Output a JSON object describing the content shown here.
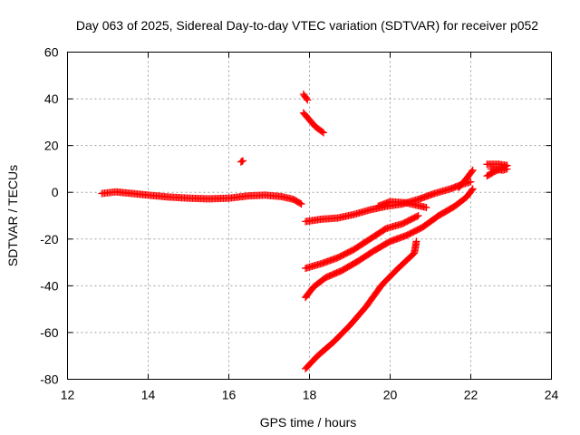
{
  "chart_data": {
    "type": "scatter",
    "title": "Day 063 of 2025, Sidereal Day-to-day VTEC variation (SDTVAR) for receiver p052",
    "xlabel": "GPS time / hours",
    "ylabel": "SDTVAR / TECUs",
    "xlim": [
      12,
      24
    ],
    "ylim": [
      -80,
      60
    ],
    "x_ticks": [
      "12",
      "14",
      "16",
      "18",
      "20",
      "22",
      "24"
    ],
    "y_ticks": [
      "-80",
      "-60",
      "-40",
      "-20",
      "0",
      "20",
      "40",
      "60"
    ],
    "grid": true,
    "legend": "none",
    "marker_color": "#ff0000",
    "series": [
      {
        "points": [
          [
            12.85,
            -0.5
          ],
          [
            13.2,
            0.2
          ],
          [
            13.6,
            -0.5
          ],
          [
            14.0,
            -1.2
          ],
          [
            14.5,
            -2.0
          ],
          [
            15.0,
            -2.5
          ],
          [
            15.5,
            -2.8
          ],
          [
            16.0,
            -2.5
          ],
          [
            16.5,
            -1.5
          ],
          [
            16.9,
            -1.2
          ],
          [
            17.3,
            -1.8
          ],
          [
            17.6,
            -3.0
          ],
          [
            17.8,
            -5.0
          ]
        ]
      },
      {
        "points": [
          [
            16.3,
            13.0
          ],
          [
            16.35,
            13.5
          ]
        ]
      },
      {
        "points": [
          [
            17.85,
            42.0
          ],
          [
            17.95,
            39.5
          ]
        ]
      },
      {
        "points": [
          [
            17.85,
            34.0
          ],
          [
            18.0,
            31.0
          ],
          [
            18.15,
            28.0
          ],
          [
            18.35,
            25.5
          ]
        ]
      },
      {
        "points": [
          [
            17.9,
            -12.5
          ],
          [
            18.3,
            -11.5
          ],
          [
            18.7,
            -11.0
          ],
          [
            19.1,
            -9.5
          ],
          [
            19.5,
            -7.5
          ],
          [
            19.9,
            -6.0
          ],
          [
            20.3,
            -5.0
          ],
          [
            20.7,
            -3.0
          ],
          [
            21.1,
            -0.5
          ],
          [
            21.5,
            1.5
          ],
          [
            21.8,
            3.5
          ],
          [
            22.0,
            4.5
          ]
        ]
      },
      {
        "points": [
          [
            19.7,
            -6.0
          ],
          [
            20.0,
            -4.0
          ],
          [
            20.4,
            -4.5
          ],
          [
            20.9,
            -6.5
          ]
        ]
      },
      {
        "points": [
          [
            17.9,
            -32.5
          ],
          [
            18.3,
            -30.5
          ],
          [
            18.7,
            -28.0
          ],
          [
            19.1,
            -24.5
          ],
          [
            19.5,
            -20.0
          ],
          [
            19.9,
            -15.5
          ],
          [
            20.3,
            -13.5
          ],
          [
            20.7,
            -10.0
          ]
        ]
      },
      {
        "points": [
          [
            17.9,
            -45.0
          ],
          [
            18.1,
            -40.5
          ],
          [
            18.4,
            -36.5
          ],
          [
            18.8,
            -33.5
          ],
          [
            19.2,
            -29.5
          ],
          [
            19.6,
            -25.0
          ],
          [
            20.0,
            -21.0
          ],
          [
            20.4,
            -18.5
          ],
          [
            20.8,
            -15.0
          ],
          [
            21.2,
            -10.0
          ],
          [
            21.6,
            -6.0
          ],
          [
            21.9,
            -2.0
          ],
          [
            22.05,
            1.5
          ]
        ]
      },
      {
        "points": [
          [
            17.9,
            -75.5
          ],
          [
            18.2,
            -70.0
          ],
          [
            18.6,
            -64.0
          ],
          [
            19.0,
            -57.0
          ],
          [
            19.4,
            -49.0
          ],
          [
            19.8,
            -39.5
          ],
          [
            20.2,
            -32.5
          ],
          [
            20.6,
            -26.0
          ],
          [
            20.65,
            -21.0
          ]
        ]
      },
      {
        "points": [
          [
            21.7,
            2.0
          ],
          [
            21.9,
            6.0
          ],
          [
            22.05,
            9.5
          ]
        ]
      },
      {
        "points": [
          [
            22.4,
            7.0
          ],
          [
            22.6,
            9.0
          ],
          [
            22.8,
            10.5
          ],
          [
            22.9,
            11.5
          ]
        ]
      },
      {
        "points": [
          [
            22.4,
            12.0
          ],
          [
            22.7,
            12.0
          ],
          [
            22.9,
            11.5
          ]
        ]
      },
      {
        "points": [
          [
            22.5,
            10.0
          ],
          [
            22.8,
            9.5
          ],
          [
            22.9,
            10.0
          ]
        ]
      }
    ]
  }
}
